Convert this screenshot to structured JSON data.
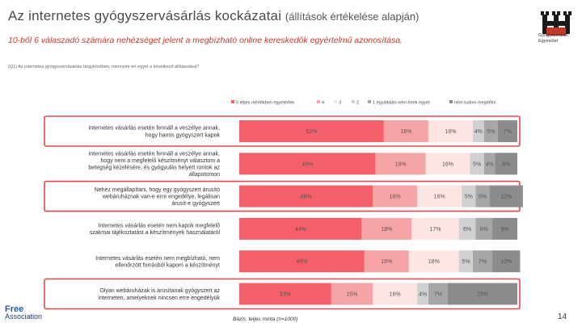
{
  "header": {
    "title_main": "Az internetes gyógyszervásárlás kockázatai",
    "title_sub": "(állítások értékelése alapján)",
    "subtitle": "10-ből 6 válaszadó számára nehézséget jelent a megbízható online kereskedők egyértelmű azonosítása.",
    "question": "(Q1) Az internetes gyógyszervásárlás tárgykörében, mennyire ért egyet a következő állításokkal?"
  },
  "logo": {
    "text_line1": "Gyógyszeripari",
    "text_line2": "Egyesület"
  },
  "colors": {
    "s5": "#f4606a",
    "s4": "#f7a4a6",
    "s3": "#fde5e4",
    "s2": "#d0d0d0",
    "s1": "#a7a7a7",
    "na": "#8c8c8c",
    "highlight": "#e8474e"
  },
  "chart_data": {
    "type": "bar",
    "orientation": "horizontal",
    "stacked": true,
    "title": "Az internetes gyógyszervásárlás kockázatai",
    "legend_position": "top",
    "series": [
      {
        "name": "5 teljes mértékben egyetértek",
        "color_key": "s5",
        "values": [
          52,
          49,
          48,
          44,
          45,
          33
        ]
      },
      {
        "name": "4",
        "color_key": "s4",
        "values": [
          16,
          18,
          16,
          18,
          16,
          15
        ]
      },
      {
        "name": "3",
        "color_key": "s3",
        "values": [
          16,
          16,
          16,
          17,
          18,
          16
        ]
      },
      {
        "name": "2",
        "color_key": "s2",
        "values": [
          4,
          5,
          5,
          6,
          5,
          4
        ]
      },
      {
        "name": "1 egyáltalán nem értek egyet",
        "color_key": "s1",
        "values": [
          5,
          4,
          5,
          6,
          7,
          7
        ]
      },
      {
        "name": "nem tudom megítélni",
        "color_key": "na",
        "values": [
          7,
          8,
          12,
          9,
          10,
          25
        ]
      }
    ],
    "categories": [
      "Internetes vásárlás esetén fennáll a veszélye annak, hogy hamis gyógyszert kapok",
      "Internetes vásárlás esetén fennáll a veszélye annak, hogy nem a megfelelő készítményt választom a betegség kezelésére, és gyógyulás helyett rontok az állapotomon",
      "Nehéz megállapítani, hogy egy gyógyszert árusító webáruháznak van-e erre engedélye, legálisan árusít-e gyógyszert",
      "Internetes vásárlás esetén nem kapok megfelelő szakmai tájékoztatást a készítmények használatáról",
      "Internetes vásárlás esetén nem megbízható, nem ellenőrzött forrásból kapom a készítményt",
      "Olyan webáruházak is árusítanak gyógyszert az interneten, amelyeknek nincsen erre engedélyük"
    ],
    "value_labels": [
      [
        "52%",
        "16%",
        "16%",
        "4%",
        "5%",
        "7%"
      ],
      [
        "49%",
        "18%",
        "16%",
        "5%",
        "4%",
        "8%"
      ],
      [
        "48%",
        "16%",
        "16%",
        "5%",
        "5%",
        "12%"
      ],
      [
        "44%",
        "18%",
        "17%",
        "6%",
        "6%",
        "9%"
      ],
      [
        "45%",
        "16%",
        "18%",
        "5%",
        "7%",
        "10%"
      ],
      [
        "33%",
        "15%",
        "16%",
        "4%",
        "7%",
        "25%"
      ]
    ],
    "highlighted_rows": [
      0,
      2,
      5
    ],
    "xlim": [
      0,
      100
    ]
  },
  "footer": {
    "logo_line1": "Free",
    "logo_line2": "Association",
    "basis": "Bázis: teljes minta (n=1000)",
    "page": "14"
  }
}
